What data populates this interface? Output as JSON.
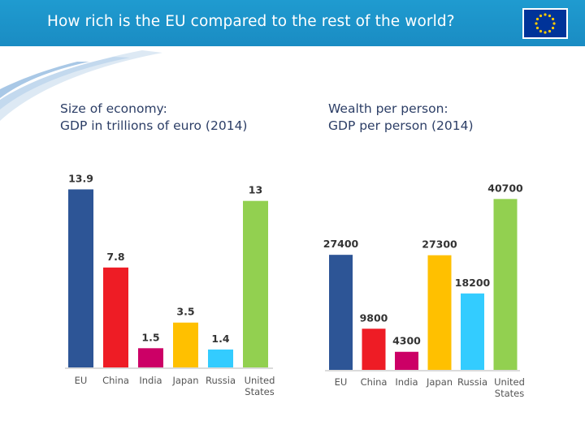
{
  "header": {
    "title": "How rich is the EU compared to the rest of the world?",
    "flag_icon": "eu-flag-icon",
    "bar_color": "#1f9bd0",
    "flag_blue": "#003399",
    "flag_gold": "#ffcc00"
  },
  "chart_data": [
    {
      "type": "bar",
      "title": "Size of economy:",
      "subtitle": "GDP in trillions of euro (2014)",
      "categories": [
        "EU",
        "China",
        "India",
        "Japan",
        "Russia",
        "United States"
      ],
      "values": [
        13.9,
        7.8,
        1.5,
        3.5,
        1.4,
        13
      ],
      "labels": [
        "13.9",
        "7.8",
        "1.5",
        "3.5",
        "1.4",
        "13"
      ],
      "colors": [
        "#2d5596",
        "#ee1c25",
        "#cc0066",
        "#ffc000",
        "#33ccff",
        "#92d050"
      ],
      "ylim": [
        0,
        14.5
      ],
      "grid": false,
      "legend": "none"
    },
    {
      "type": "bar",
      "title": "Wealth per person:",
      "subtitle": "GDP per person (2014)",
      "categories": [
        "EU",
        "China",
        "India",
        "Japan",
        "Russia",
        "United States"
      ],
      "values": [
        27400,
        9800,
        4300,
        27300,
        18200,
        40700
      ],
      "labels": [
        "27400",
        "9800",
        "4300",
        "27300",
        "18200",
        "40700"
      ],
      "colors": [
        "#2d5596",
        "#ee1c25",
        "#cc0066",
        "#ffc000",
        "#33ccff",
        "#92d050"
      ],
      "ylim": [
        0,
        42500
      ],
      "grid": false,
      "legend": "none"
    }
  ]
}
